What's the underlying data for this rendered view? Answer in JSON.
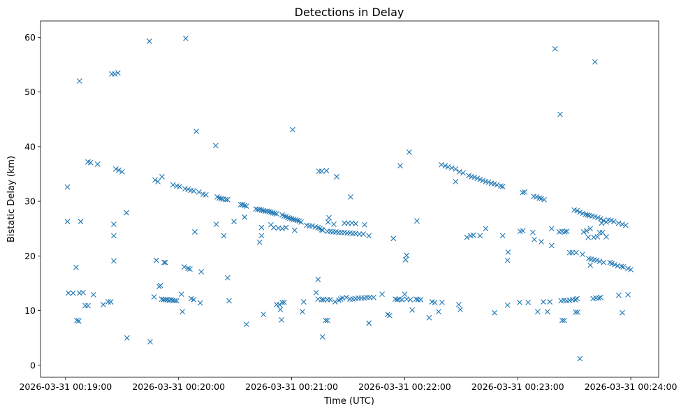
{
  "chart_data": {
    "type": "scatter",
    "title": "Detections in Delay",
    "xlabel": "Time (UTC)",
    "ylabel": "Bistatic Delay (km)",
    "x_units": "seconds since 2026-03-31 00:19:00",
    "xlim": [
      -13.3,
      314.8
    ],
    "ylim": [
      -2.2,
      63.0
    ],
    "grid": false,
    "marker": "x",
    "color": "#1f77b4",
    "x_ticks": [
      {
        "value": 0,
        "label": "2026-03-31 00:19:00"
      },
      {
        "value": 60,
        "label": "2026-03-31 00:20:00"
      },
      {
        "value": 120,
        "label": "2026-03-31 00:21:00"
      },
      {
        "value": 180,
        "label": "2026-03-31 00:22:00"
      },
      {
        "value": 240,
        "label": "2026-03-31 00:23:00"
      },
      {
        "value": 300,
        "label": "2026-03-31 00:24:00"
      }
    ],
    "y_ticks": [
      {
        "value": 0,
        "label": "0"
      },
      {
        "value": 10,
        "label": "10"
      },
      {
        "value": 20,
        "label": "20"
      },
      {
        "value": 30,
        "label": "30"
      },
      {
        "value": 40,
        "label": "40"
      },
      {
        "value": 50,
        "label": "50"
      },
      {
        "value": 60,
        "label": "60"
      }
    ],
    "points": [
      [
        1,
        26.3
      ],
      [
        1,
        32.6
      ],
      [
        1.5,
        13.2
      ],
      [
        4,
        13.2
      ],
      [
        5.6,
        17.9
      ],
      [
        6,
        8.2
      ],
      [
        7,
        8.1
      ],
      [
        7.4,
        52
      ],
      [
        7.4,
        13.2
      ],
      [
        8,
        26.3
      ],
      [
        9.3,
        13.3
      ],
      [
        10.4,
        10.9
      ],
      [
        11.9,
        10.9
      ],
      [
        11.9,
        37.2
      ],
      [
        13.3,
        37.1
      ],
      [
        14.8,
        12.9
      ],
      [
        17,
        36.8
      ],
      [
        20,
        11.1
      ],
      [
        22.6,
        11.6
      ],
      [
        24,
        11.6
      ],
      [
        24.5,
        53.3
      ],
      [
        26,
        53.3
      ],
      [
        27.8,
        53.5
      ],
      [
        25.6,
        25.8
      ],
      [
        25.6,
        23.7
      ],
      [
        25.6,
        19.1
      ],
      [
        26.7,
        35.9
      ],
      [
        28.2,
        35.7
      ],
      [
        30,
        35.4
      ],
      [
        32.3,
        27.9
      ],
      [
        32.6,
        5.0
      ],
      [
        44.5,
        59.3
      ],
      [
        44.9,
        4.3
      ],
      [
        47,
        12.5
      ],
      [
        47.5,
        33.9
      ],
      [
        49,
        33.6
      ],
      [
        48.2,
        19.2
      ],
      [
        49.7,
        14.4
      ],
      [
        50.4,
        14.6
      ],
      [
        51.2,
        34.5
      ],
      [
        51,
        12.1
      ],
      [
        52,
        12.0
      ],
      [
        53,
        12.0
      ],
      [
        54,
        12.0
      ],
      [
        55,
        11.9
      ],
      [
        56,
        12.0
      ],
      [
        57,
        11.9
      ],
      [
        58,
        11.8
      ],
      [
        52.3,
        18.8
      ],
      [
        53,
        18.8
      ],
      [
        57,
        33.0
      ],
      [
        59,
        32.8
      ],
      [
        60.5,
        32.7
      ],
      [
        59,
        11.8
      ],
      [
        61.5,
        13.0
      ],
      [
        62,
        9.8
      ],
      [
        63.8,
        59.8
      ],
      [
        63.4,
        32.3
      ],
      [
        65,
        32.2
      ],
      [
        66.5,
        32.0
      ],
      [
        68,
        31.9
      ],
      [
        63,
        18.0
      ],
      [
        65,
        17.7
      ],
      [
        66,
        17.6
      ],
      [
        66.7,
        12.2
      ],
      [
        68,
        12.0
      ],
      [
        68.6,
        24.4
      ],
      [
        69.4,
        42.8
      ],
      [
        70.8,
        31.7
      ],
      [
        73,
        31.3
      ],
      [
        74.5,
        31.2
      ],
      [
        71.5,
        11.4
      ],
      [
        72,
        17.1
      ],
      [
        79.7,
        40.2
      ],
      [
        80,
        25.8
      ],
      [
        80.5,
        30.8
      ],
      [
        81.5,
        30.6
      ],
      [
        82.5,
        30.5
      ],
      [
        83.5,
        30.4
      ],
      [
        85,
        30.3
      ],
      [
        86,
        30.3
      ],
      [
        84,
        23.7
      ],
      [
        86,
        16
      ],
      [
        86.8,
        11.8
      ],
      [
        89.4,
        26.3
      ],
      [
        93,
        29.4
      ],
      [
        94,
        29.4
      ],
      [
        95,
        29.2
      ],
      [
        96,
        29.1
      ],
      [
        95,
        27.1
      ],
      [
        96,
        7.5
      ],
      [
        101,
        28.6
      ],
      [
        102,
        28.5
      ],
      [
        103,
        28.5
      ],
      [
        104,
        28.4
      ],
      [
        105,
        28.3
      ],
      [
        106,
        28.2
      ],
      [
        107,
        28.2
      ],
      [
        108,
        28.1
      ],
      [
        109,
        28.0
      ],
      [
        110,
        27.9
      ],
      [
        111,
        27.8
      ],
      [
        112,
        27.7
      ],
      [
        103,
        22.5
      ],
      [
        104,
        23.7
      ],
      [
        104,
        25.2
      ],
      [
        105,
        9.3
      ],
      [
        109,
        25.7
      ],
      [
        110.5,
        25.2
      ],
      [
        112,
        11.1
      ],
      [
        113.5,
        11.1
      ],
      [
        115,
        11.5
      ],
      [
        116,
        11.5
      ],
      [
        114,
        10.2
      ],
      [
        114.6,
        8.3
      ],
      [
        113,
        25.1
      ],
      [
        115,
        25.0
      ],
      [
        117,
        25.2
      ],
      [
        115,
        27.5
      ],
      [
        116,
        27.3
      ],
      [
        117,
        27.2
      ],
      [
        118,
        27.0
      ],
      [
        119,
        26.9
      ],
      [
        120,
        26.8
      ],
      [
        121,
        26.7
      ],
      [
        122,
        26.6
      ],
      [
        123,
        26.5
      ],
      [
        124,
        26.4
      ],
      [
        125,
        26.2
      ],
      [
        120.5,
        43.1
      ],
      [
        121.6,
        24.7
      ],
      [
        125.7,
        9.8
      ],
      [
        126.4,
        11.6
      ],
      [
        128,
        25.6
      ],
      [
        129.5,
        25.5
      ],
      [
        131,
        25.5
      ],
      [
        132.5,
        25.3
      ],
      [
        134,
        25.2
      ],
      [
        135,
        25.0
      ],
      [
        136,
        24.8
      ],
      [
        136.5,
        24.7
      ],
      [
        134,
        15.7
      ],
      [
        133,
        13.3
      ],
      [
        134,
        12.1
      ],
      [
        136,
        12.0
      ],
      [
        137,
        12.0
      ],
      [
        139,
        12.0
      ],
      [
        140.5,
        12.0
      ],
      [
        134.5,
        35.5
      ],
      [
        136,
        35.5
      ],
      [
        138.5,
        35.6
      ],
      [
        136.4,
        5.2
      ],
      [
        138,
        8.2
      ],
      [
        139,
        8.2
      ],
      [
        139.8,
        27
      ],
      [
        139.3,
        26.2
      ],
      [
        142.4,
        25.8
      ],
      [
        139,
        24.5
      ],
      [
        140.5,
        24.5
      ],
      [
        142,
        24.4
      ],
      [
        143.5,
        24.4
      ],
      [
        145,
        24.3
      ],
      [
        146.5,
        24.3
      ],
      [
        148,
        24.3
      ],
      [
        149.5,
        24.2
      ],
      [
        151,
        24.2
      ],
      [
        152.5,
        24.1
      ],
      [
        154,
        24.1
      ],
      [
        156,
        24.0
      ],
      [
        158,
        24.0
      ],
      [
        143.9,
        34.5
      ],
      [
        143,
        11.6
      ],
      [
        145,
        11.9
      ],
      [
        146,
        12.1
      ],
      [
        147,
        12.3
      ],
      [
        149,
        12.4
      ],
      [
        151,
        12.1
      ],
      [
        152.5,
        12.1
      ],
      [
        154,
        12.2
      ],
      [
        155.5,
        12.3
      ],
      [
        157,
        12.3
      ],
      [
        158.5,
        12.3
      ],
      [
        160,
        12.4
      ],
      [
        161.5,
        12.4
      ],
      [
        163.5,
        12.4
      ],
      [
        148,
        26
      ],
      [
        150,
        26
      ],
      [
        152,
        26
      ],
      [
        154,
        25.9
      ],
      [
        151.3,
        30.8
      ],
      [
        158.7,
        25.7
      ],
      [
        161,
        23.7
      ],
      [
        161,
        7.7
      ],
      [
        168,
        13
      ],
      [
        171,
        9.3
      ],
      [
        172,
        9.1
      ],
      [
        174,
        23.2
      ],
      [
        175,
        12.1
      ],
      [
        176,
        12.0
      ],
      [
        177,
        12.1
      ],
      [
        178.5,
        12.0
      ],
      [
        177.6,
        36.5
      ],
      [
        180,
        13
      ],
      [
        180.5,
        19.3
      ],
      [
        181,
        20.1
      ],
      [
        182.4,
        39
      ],
      [
        181,
        12.1
      ],
      [
        183,
        12.0
      ],
      [
        186,
        12.1
      ],
      [
        187,
        12.0
      ],
      [
        188.5,
        12.0
      ],
      [
        184,
        10.1
      ],
      [
        186.5,
        26.4
      ],
      [
        193,
        8.7
      ],
      [
        194.5,
        11.6
      ],
      [
        196,
        11.5
      ],
      [
        198,
        9.8
      ],
      [
        199.8,
        11.5
      ],
      [
        208.7,
        11.1
      ],
      [
        209.5,
        10.2
      ],
      [
        199.5,
        36.7
      ],
      [
        201.5,
        36.5
      ],
      [
        203,
        36.3
      ],
      [
        205,
        36.1
      ],
      [
        207,
        35.9
      ],
      [
        209,
        35.4
      ],
      [
        211,
        35.2
      ],
      [
        214,
        34.7
      ],
      [
        215.5,
        34.5
      ],
      [
        217,
        34.4
      ],
      [
        218.5,
        34.2
      ],
      [
        220,
        34.0
      ],
      [
        221.5,
        33.8
      ],
      [
        223,
        33.6
      ],
      [
        224.5,
        33.5
      ],
      [
        226,
        33.3
      ],
      [
        227.5,
        33.2
      ],
      [
        229,
        33.0
      ],
      [
        231,
        32.8
      ],
      [
        232,
        32.7
      ],
      [
        207,
        33.6
      ],
      [
        213,
        23.4
      ],
      [
        215,
        23.7
      ],
      [
        216.5,
        23.8
      ],
      [
        220,
        23.7
      ],
      [
        223,
        25
      ],
      [
        227.7,
        9.6
      ],
      [
        232,
        23.7
      ],
      [
        234.6,
        19.2
      ],
      [
        234.9,
        20.7
      ],
      [
        234.6,
        11
      ],
      [
        241.3,
        24.5
      ],
      [
        242.7,
        24.6
      ],
      [
        241,
        11.5
      ],
      [
        242.5,
        31.6
      ],
      [
        243.6,
        31.7
      ],
      [
        245.5,
        11.5
      ],
      [
        248,
        24.3
      ],
      [
        248.5,
        30.9
      ],
      [
        250,
        30.8
      ],
      [
        251.5,
        30.6
      ],
      [
        252.5,
        30.5
      ],
      [
        254,
        30.3
      ],
      [
        248.8,
        23.0
      ],
      [
        250.6,
        9.8
      ],
      [
        252.5,
        22.6
      ],
      [
        253.6,
        11.6
      ],
      [
        255.8,
        9.8
      ],
      [
        257,
        11.6
      ],
      [
        258,
        25
      ],
      [
        259.8,
        57.9
      ],
      [
        258,
        21.9
      ],
      [
        262.5,
        45.9
      ],
      [
        262,
        24.4
      ],
      [
        263.5,
        24.5
      ],
      [
        265,
        24.4
      ],
      [
        266,
        24.5
      ],
      [
        263,
        11.8
      ],
      [
        264.5,
        11.9
      ],
      [
        266,
        11.8
      ],
      [
        267.5,
        11.9
      ],
      [
        269,
        12.0
      ],
      [
        270.5,
        12.0
      ],
      [
        271.5,
        12.2
      ],
      [
        263.6,
        8.2
      ],
      [
        264.7,
        8.2
      ],
      [
        267.6,
        20.6
      ],
      [
        269,
        20.6
      ],
      [
        271,
        20.6
      ],
      [
        270,
        28.4
      ],
      [
        271.5,
        28.3
      ],
      [
        273,
        28.0
      ],
      [
        274.5,
        27.8
      ],
      [
        276,
        27.6
      ],
      [
        277,
        27.5
      ],
      [
        278,
        27.4
      ],
      [
        279.5,
        27.3
      ],
      [
        281,
        27.2
      ],
      [
        282.5,
        27.0
      ],
      [
        284,
        26.8
      ],
      [
        285.5,
        26.5
      ],
      [
        287,
        26.2
      ],
      [
        284.5,
        26.0
      ],
      [
        270.7,
        9.7
      ],
      [
        271.8,
        9.7
      ],
      [
        273,
        1.2
      ],
      [
        274.4,
        20.3
      ],
      [
        275,
        24.4
      ],
      [
        276.5,
        24.6
      ],
      [
        277.4,
        23.4
      ],
      [
        278.5,
        25
      ],
      [
        278.5,
        18.3
      ],
      [
        277.7,
        19.5
      ],
      [
        279,
        19.4
      ],
      [
        280.5,
        19.3
      ],
      [
        282,
        19.2
      ],
      [
        283.5,
        19.0
      ],
      [
        285.6,
        18.8
      ],
      [
        280,
        12.2
      ],
      [
        281.5,
        12.3
      ],
      [
        283,
        12.3
      ],
      [
        284,
        12.4
      ],
      [
        281,
        55.5
      ],
      [
        280.4,
        23.4
      ],
      [
        282.3,
        23.5
      ],
      [
        283.5,
        24.3
      ],
      [
        285,
        24.3
      ],
      [
        287,
        23.5
      ],
      [
        288,
        26.6
      ],
      [
        289.5,
        26.5
      ],
      [
        291,
        26.3
      ],
      [
        293.5,
        26.0
      ],
      [
        295.5,
        25.8
      ],
      [
        297.3,
        25.6
      ],
      [
        289,
        18.8
      ],
      [
        290,
        18.6
      ],
      [
        291.5,
        18.4
      ],
      [
        293,
        18.2
      ],
      [
        295,
        18.1
      ],
      [
        296,
        18.0
      ],
      [
        293.6,
        12.8
      ],
      [
        295.5,
        9.6
      ],
      [
        298.5,
        17.7
      ],
      [
        300,
        17.5
      ],
      [
        298.5,
        12.9
      ]
    ]
  }
}
